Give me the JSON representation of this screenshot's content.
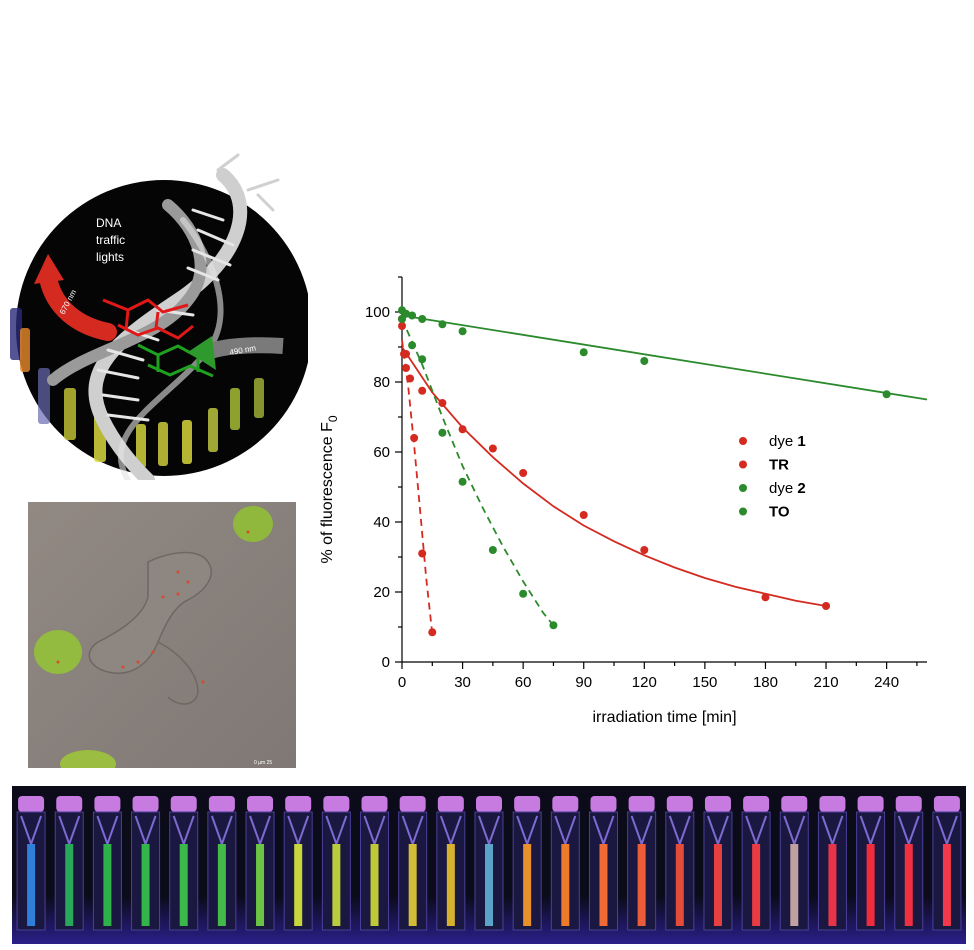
{
  "illustration": {
    "caption_lines": [
      "DNA",
      "traffic",
      "lights"
    ],
    "red_arrow_label": "670 nm",
    "green_arrow_label": "490 nm"
  },
  "micrograph": {
    "scale_bar_text": "0  µm  25"
  },
  "chart_data": {
    "type": "scatter",
    "xlabel": "irradiation time [min]",
    "ylabel": "% of fluorescence F",
    "ylabel_subscript": "0",
    "xlim": [
      0,
      260
    ],
    "ylim": [
      0,
      110
    ],
    "xticks": [
      0,
      30,
      60,
      90,
      120,
      150,
      180,
      210,
      240
    ],
    "yticks": [
      0,
      20,
      40,
      60,
      80,
      100
    ],
    "legend_position": "center-right",
    "series": [
      {
        "name": "dye 1",
        "name_parts": [
          "dye ",
          "1"
        ],
        "color": "#d42a20",
        "line_style": "dashed",
        "points": [
          [
            0,
            96
          ],
          [
            1,
            88
          ],
          [
            2,
            84
          ],
          [
            4,
            81
          ],
          [
            6,
            64
          ],
          [
            10,
            31
          ],
          [
            15,
            8.5
          ]
        ],
        "fit_curve": [
          [
            0,
            92
          ],
          [
            3,
            79
          ],
          [
            6,
            62
          ],
          [
            9,
            43
          ],
          [
            12,
            24
          ],
          [
            15,
            8
          ]
        ]
      },
      {
        "name": "TR",
        "name_parts": [
          "",
          "TR"
        ],
        "color": "#d42a20",
        "line_style": "solid",
        "points": [
          [
            0,
            98
          ],
          [
            2,
            88
          ],
          [
            10,
            77.5
          ],
          [
            20,
            74
          ],
          [
            30,
            66.5
          ],
          [
            45,
            61
          ],
          [
            60,
            54
          ],
          [
            90,
            42
          ],
          [
            120,
            32
          ],
          [
            180,
            18.5
          ],
          [
            210,
            16
          ]
        ],
        "fit_curve": [
          [
            0,
            90
          ],
          [
            15,
            77
          ],
          [
            30,
            67
          ],
          [
            45,
            58.5
          ],
          [
            60,
            51
          ],
          [
            75,
            44.5
          ],
          [
            90,
            39
          ],
          [
            105,
            34.5
          ],
          [
            120,
            30.5
          ],
          [
            135,
            27
          ],
          [
            150,
            24
          ],
          [
            165,
            21.5
          ],
          [
            180,
            19.5
          ],
          [
            195,
            17.5
          ],
          [
            210,
            16
          ]
        ]
      },
      {
        "name": "dye 2",
        "name_parts": [
          "dye ",
          "2"
        ],
        "color": "#2b8a2b",
        "line_style": "dashed",
        "points": [
          [
            0,
            98
          ],
          [
            5,
            90.5
          ],
          [
            10,
            86.5
          ],
          [
            20,
            65.5
          ],
          [
            30,
            51.5
          ],
          [
            45,
            32
          ],
          [
            60,
            19.5
          ],
          [
            75,
            10.5
          ]
        ],
        "fit_curve": [
          [
            0,
            98
          ],
          [
            10,
            85
          ],
          [
            20,
            70
          ],
          [
            30,
            56
          ],
          [
            40,
            44
          ],
          [
            50,
            33
          ],
          [
            60,
            23
          ],
          [
            70,
            14
          ],
          [
            75,
            10.5
          ]
        ]
      },
      {
        "name": "TO",
        "name_parts": [
          "",
          "TO"
        ],
        "color": "#2b8a2b",
        "line_style": "solid",
        "points": [
          [
            0,
            100.5
          ],
          [
            2,
            99.5
          ],
          [
            5,
            99
          ],
          [
            10,
            98
          ],
          [
            20,
            96.5
          ],
          [
            30,
            94.5
          ],
          [
            90,
            88.5
          ],
          [
            120,
            86
          ],
          [
            240,
            76.5
          ]
        ],
        "fit_curve": [
          [
            0,
            99
          ],
          [
            260,
            75
          ]
        ]
      }
    ]
  },
  "vials": {
    "colors": [
      "#2f7fd8",
      "#2aa85a",
      "#2fb24a",
      "#32b64a",
      "#3ab84a",
      "#44bb48",
      "#6cc444",
      "#c8d83c",
      "#b8cc3c",
      "#c0c83a",
      "#d2bb36",
      "#d8b030",
      "#5aa4c8",
      "#e8902c",
      "#ec7c2c",
      "#f06a34",
      "#ec5c38",
      "#e44c3a",
      "#e64040",
      "#e83c42",
      "#c0a0a0",
      "#e83448",
      "#ee2c3c",
      "#f03040",
      "#f2384a"
    ]
  }
}
